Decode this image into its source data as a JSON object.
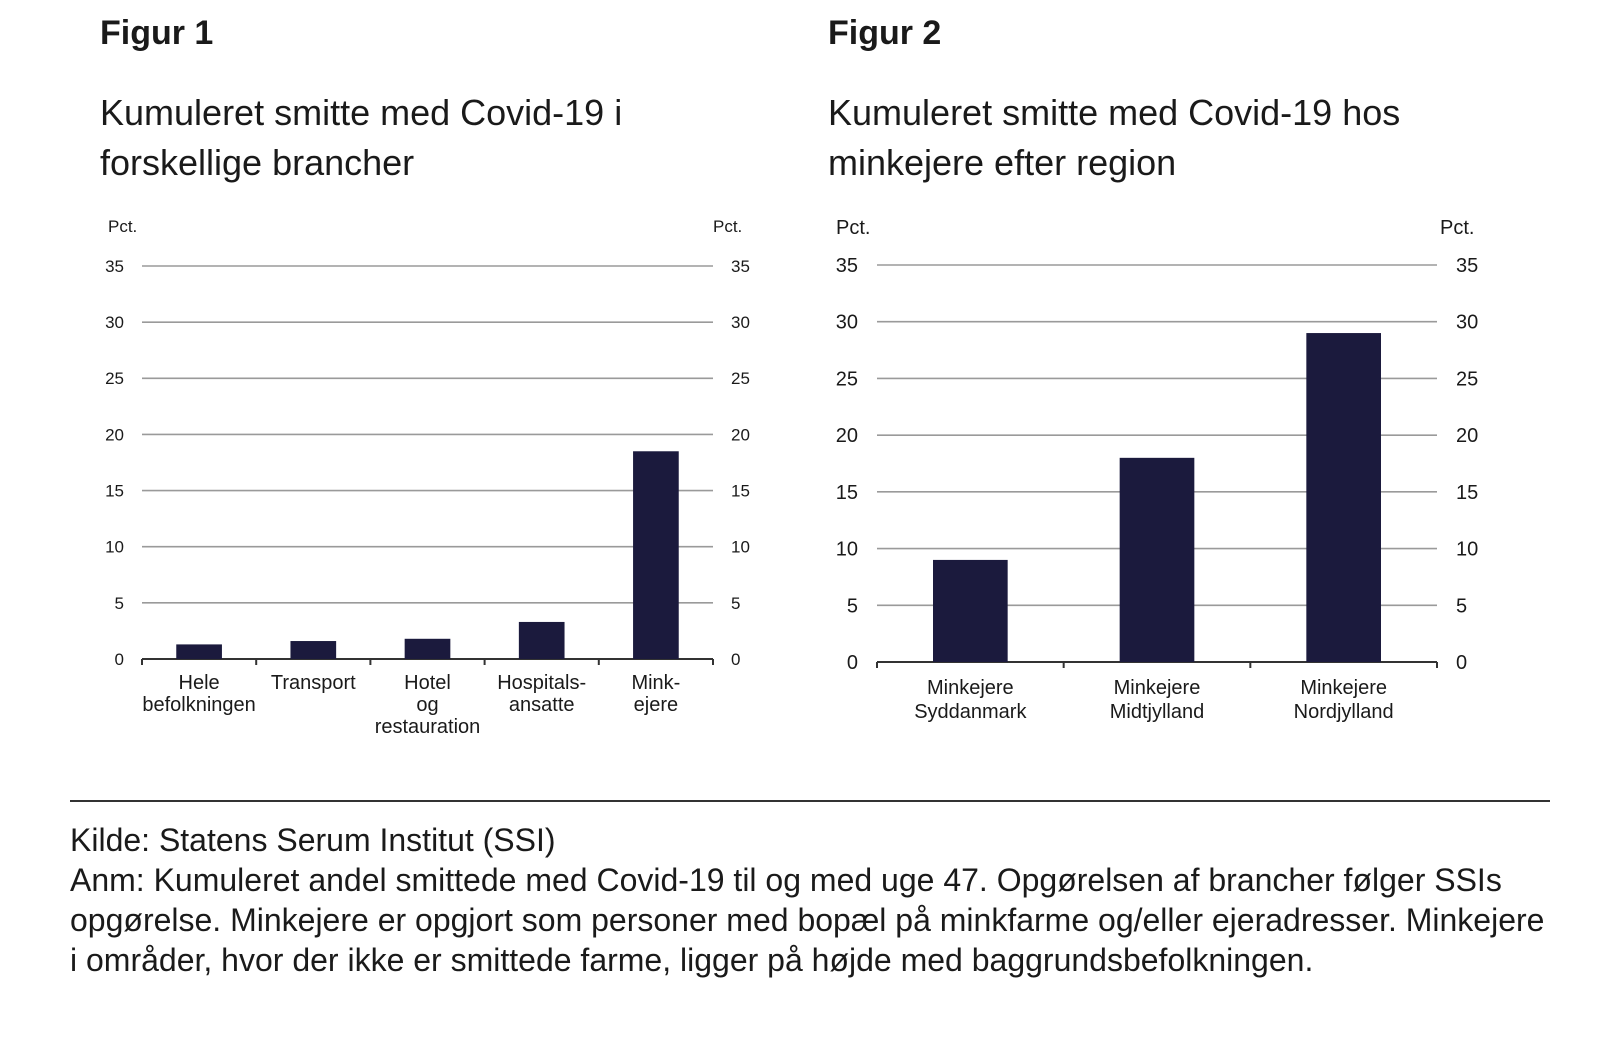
{
  "figure1": {
    "label": "Figur 1",
    "title_line1": "Kumuleret smitte med Covid-19 i",
    "title_line2": "forskellige brancher"
  },
  "figure2": {
    "label": "Figur 2",
    "title_line1": "Kumuleret smitte med Covid-19 hos",
    "title_line2": "minkejere efter region"
  },
  "chart_data": [
    {
      "type": "bar",
      "title": "Kumuleret smitte med Covid-19 i forskellige brancher",
      "categories": [
        [
          "Hele",
          "befolkningen"
        ],
        [
          "Transport"
        ],
        [
          "Hotel",
          "og",
          "restauration"
        ],
        [
          "Hospitals-",
          "ansatte"
        ],
        [
          "Mink-",
          "ejere"
        ]
      ],
      "values": [
        1.3,
        1.6,
        1.8,
        3.3,
        18.5
      ],
      "ylabel_left": "Pct.",
      "ylabel_right": "Pct.",
      "ylim": [
        0,
        35
      ],
      "yticks": [
        0,
        5,
        10,
        15,
        20,
        25,
        30,
        35
      ],
      "bar_color": "#1b1a3d",
      "grid": true
    },
    {
      "type": "bar",
      "title": "Kumuleret smitte med Covid-19 hos minkejere efter region",
      "categories": [
        [
          "Minkejere",
          "Syddanmark"
        ],
        [
          "Minkejere",
          "Midtjylland"
        ],
        [
          "Minkejere",
          "Nordjylland"
        ]
      ],
      "values": [
        9,
        18,
        29
      ],
      "ylabel_left": "Pct.",
      "ylabel_right": "Pct.",
      "ylim": [
        0,
        35
      ],
      "yticks": [
        0,
        5,
        10,
        15,
        20,
        25,
        30,
        35
      ],
      "bar_color": "#1b1a3d",
      "grid": true
    }
  ],
  "footer": {
    "source": "Kilde: Statens Serum Institut (SSI)",
    "note": "Anm: Kumuleret andel smittede med Covid-19 til og med uge 47. Opgørelsen af brancher følger SSIs opgørelse. Minkejere er opgjort som personer med bopæl på minkfarme og/eller ejeradresser. Minkejere i områder, hvor der ikke er smittede farme, ligger på højde med baggrundsbefolkningen."
  }
}
